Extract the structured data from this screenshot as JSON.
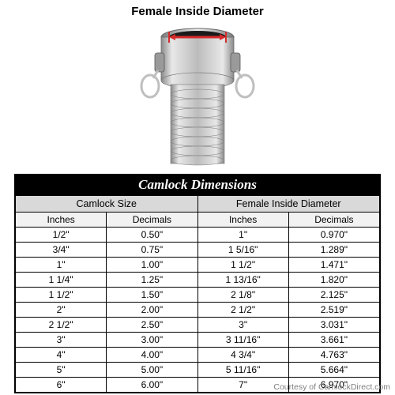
{
  "diagram": {
    "label": "Female Inside Diameter",
    "arrow_color": "#d62b2b",
    "metal_light": "#dcdcdc",
    "metal_mid": "#b8b8b8",
    "metal_dark": "#8a8a8a"
  },
  "table": {
    "title": "Camlock Dimensions",
    "group_headers": [
      "Camlock Size",
      "Female Inside Diameter"
    ],
    "sub_headers": [
      "Inches",
      "Decimals",
      "Inches",
      "Decimals"
    ],
    "rows": [
      [
        "1/2\"",
        "0.50\"",
        "1\"",
        "0.970\""
      ],
      [
        "3/4\"",
        "0.75\"",
        "1 5/16\"",
        "1.289\""
      ],
      [
        "1\"",
        "1.00\"",
        "1 1/2\"",
        "1.471\""
      ],
      [
        "1 1/4\"",
        "1.25\"",
        "1 13/16\"",
        "1.820\""
      ],
      [
        "1 1/2\"",
        "1.50\"",
        "2 1/8\"",
        "2.125\""
      ],
      [
        "2\"",
        "2.00\"",
        "2 1/2\"",
        "2.519\""
      ],
      [
        "2 1/2\"",
        "2.50\"",
        "3\"",
        "3.031\""
      ],
      [
        "3\"",
        "3.00\"",
        "3 11/16\"",
        "3.661\""
      ],
      [
        "4\"",
        "4.00\"",
        "4 3/4\"",
        "4.763\""
      ],
      [
        "5\"",
        "5.00\"",
        "5 11/16\"",
        "5.664\""
      ],
      [
        "6\"",
        "6.00\"",
        "7\"",
        "6.970\""
      ]
    ]
  },
  "credit": "Courtesy of CamlockDirect.com",
  "colors": {
    "title_bg": "#000000",
    "title_fg": "#ffffff",
    "group_bg": "#d9d9d9",
    "sub_bg": "#f2f2f2",
    "cell_bg": "#ffffff",
    "border": "#000000",
    "credit": "#808080"
  }
}
